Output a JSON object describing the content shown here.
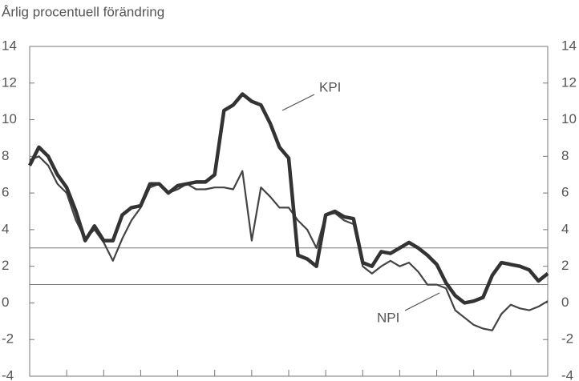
{
  "chart_data": {
    "type": "line",
    "y_label": "Årlig procentuell förändring",
    "categories": [
      null,
      null,
      null,
      null,
      null,
      null,
      null,
      null,
      null,
      null,
      null,
      null,
      null,
      null,
      null,
      null,
      null,
      null,
      null,
      null,
      null,
      null,
      null,
      null,
      null,
      null,
      null,
      null,
      null,
      null,
      null,
      null,
      null,
      null,
      null,
      null,
      null,
      null,
      null,
      null,
      null,
      null,
      null,
      null,
      null,
      null,
      null,
      null,
      null,
      null,
      null,
      null,
      null,
      null,
      null,
      null,
      null
    ],
    "series": [
      {
        "name": "KPI",
        "color": "#333333",
        "values": [
          7.5,
          8.5,
          8.0,
          7.0,
          6.3,
          5.0,
          3.4,
          4.2,
          3.4,
          3.4,
          4.8,
          5.2,
          5.3,
          6.5,
          6.5,
          6.0,
          6.4,
          6.5,
          6.6,
          6.6,
          7.0,
          10.5,
          10.8,
          11.4,
          11.0,
          10.8,
          9.8,
          8.5,
          7.9,
          2.6,
          2.4,
          2.0,
          4.8,
          5.0,
          4.7,
          4.6,
          2.2,
          2.0,
          2.8,
          2.7,
          3.0,
          3.3,
          3.0,
          2.6,
          2.1,
          1.1,
          0.4,
          0.0,
          0.1,
          0.3,
          1.5,
          2.2,
          2.1,
          2.0,
          1.8,
          1.2,
          1.6
        ]
      },
      {
        "name": "NPI",
        "color": "#444444",
        "values": [
          7.8,
          8.0,
          7.5,
          6.5,
          6.0,
          4.5,
          3.5,
          4.0,
          3.3,
          2.3,
          3.5,
          4.5,
          5.2,
          6.3,
          6.5,
          6.0,
          6.2,
          6.5,
          6.2,
          6.2,
          6.3,
          6.3,
          6.2,
          7.2,
          3.4,
          6.3,
          5.8,
          5.2,
          5.2,
          4.5,
          4.0,
          3.0,
          4.8,
          4.9,
          4.5,
          4.3,
          2.0,
          1.6,
          2.0,
          2.3,
          2.0,
          2.2,
          1.7,
          1.0,
          1.0,
          0.8,
          -0.4,
          -0.8,
          -1.2,
          -1.4,
          -1.5,
          -0.6,
          -0.1,
          -0.3,
          -0.4,
          -0.2,
          0.1
        ]
      }
    ],
    "ylim": [
      -4,
      14
    ],
    "yticks": [
      -4,
      -2,
      0,
      2,
      4,
      6,
      8,
      10,
      12,
      14
    ],
    "y2lim": [
      -4,
      14
    ],
    "y2ticks": [
      -4,
      -2,
      0,
      2,
      4,
      6,
      8,
      10,
      12,
      14
    ],
    "reference_lines": [
      3,
      1
    ],
    "category_tick_every": 4
  }
}
